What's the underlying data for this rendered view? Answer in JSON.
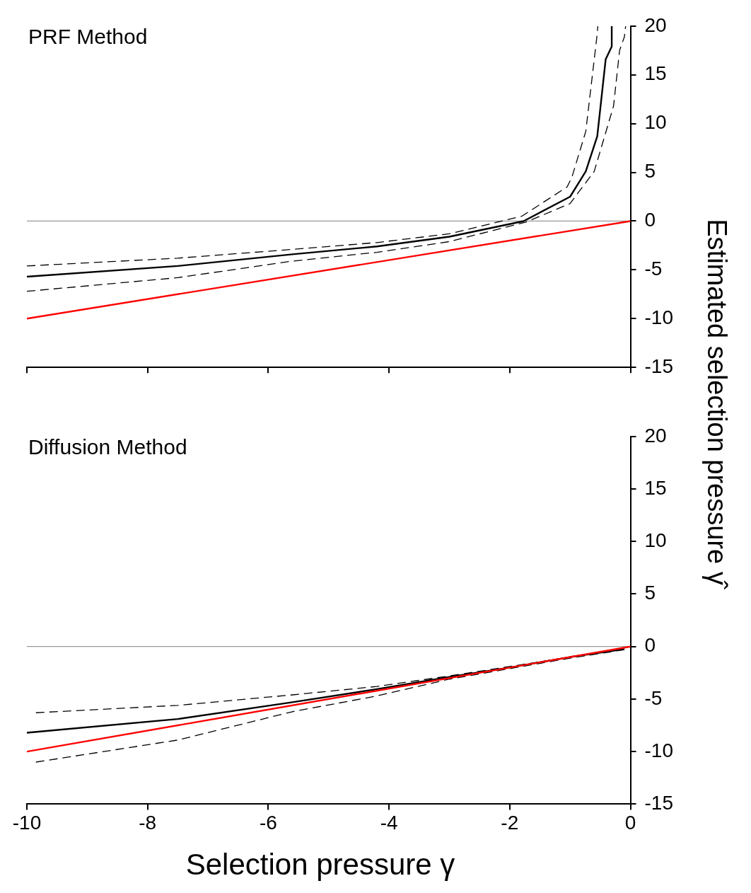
{
  "chart_data": [
    {
      "type": "line",
      "title": "PRF Method",
      "ylabel": "Estimated selection pressure γ̂",
      "xlim": [
        -10,
        0
      ],
      "xticks": [
        -10,
        -8,
        -6,
        -4,
        -2,
        0
      ],
      "ylim": [
        -15,
        20
      ],
      "yticks": [
        20,
        15,
        10,
        5,
        0,
        -5,
        -10,
        -15
      ],
      "tick_labels": "y",
      "grid": false,
      "legend": false,
      "marker": "none",
      "ref_lines": [
        {
          "axis": "y",
          "value": 0,
          "color": "#999999"
        }
      ],
      "series": [
        {
          "color": "#ff0000",
          "line_style": "solid",
          "x": [
            -10,
            0
          ],
          "values": [
            -10,
            0
          ]
        },
        {
          "color": "#000000",
          "line_style": "dashed",
          "x": [
            -10,
            -7.5,
            -5.6,
            -4.2,
            -3,
            -1.8,
            -1.05,
            -0.97,
            -0.74,
            -0.56,
            -0.54
          ],
          "values": [
            -4.6,
            -3.8,
            -2.9,
            -2.2,
            -1.3,
            0.5,
            3.5,
            4.5,
            9.2,
            18.7,
            20
          ]
        },
        {
          "color": "#000000",
          "line_style": "dashed",
          "x": [
            -10,
            -7.5,
            -5.6,
            -4.2,
            -3,
            -1.73,
            -1,
            -0.6,
            -0.28,
            -0.18,
            -0.1,
            -0.08
          ],
          "values": [
            -7.2,
            -5.8,
            -4.1,
            -3.2,
            -2.1,
            -0.1,
            1.8,
            5.1,
            11.8,
            17.5,
            18.9,
            20
          ]
        },
        {
          "color": "#000000",
          "line_style": "solid",
          "x": [
            -10,
            -7.5,
            -5.6,
            -4.2,
            -3,
            -1.77,
            -1,
            -0.74,
            -0.55,
            -0.41,
            -0.31,
            -0.31
          ],
          "values": [
            -5.7,
            -4.6,
            -3.4,
            -2.6,
            -1.6,
            0,
            2.5,
            5.1,
            8.7,
            16.6,
            17.9,
            20
          ]
        }
      ]
    },
    {
      "type": "line",
      "title": "Diffusion Method",
      "xlabel": "Selection pressure γ",
      "xlim": [
        -10,
        0
      ],
      "xticks": [
        -10,
        -8,
        -6,
        -4,
        -2,
        0
      ],
      "ylim": [
        -15,
        20
      ],
      "yticks": [
        20,
        15,
        10,
        5,
        0,
        -5,
        -10,
        -15
      ],
      "grid": false,
      "legend": false,
      "marker": "none",
      "ref_lines": [
        {
          "axis": "y",
          "value": 0,
          "color": "#999999"
        }
      ],
      "series": [
        {
          "color": "#ff0000",
          "line_style": "solid",
          "x": [
            -10,
            0
          ],
          "values": [
            -10,
            0
          ]
        },
        {
          "color": "#000000",
          "line_style": "dashed",
          "x": [
            -9.85,
            -7.5,
            -5.6,
            -4.2,
            -3,
            -2,
            -1,
            -0.1
          ],
          "values": [
            -6.3,
            -5.6,
            -4.6,
            -3.8,
            -2.8,
            -1.9,
            -1.0,
            -0.2
          ]
        },
        {
          "color": "#000000",
          "line_style": "dashed",
          "x": [
            -9.85,
            -7.5,
            -5.6,
            -4.2,
            -3,
            -2,
            -1,
            -0.1
          ],
          "values": [
            -11,
            -8.9,
            -6.2,
            -4.7,
            -3.1,
            -2.1,
            -1.1,
            -0.3
          ]
        },
        {
          "color": "#000000",
          "line_style": "solid",
          "x": [
            -10,
            -7.5,
            -5.6,
            -4.2,
            -3,
            -2,
            -1,
            -0.1
          ],
          "values": [
            -8.2,
            -6.9,
            -5.3,
            -4.05,
            -2.9,
            -2.0,
            -1.0,
            -0.25
          ]
        }
      ]
    }
  ]
}
